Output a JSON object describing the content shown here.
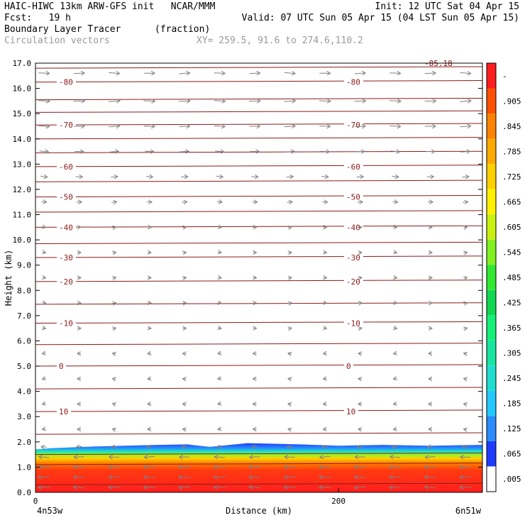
{
  "header": {
    "line1_left": "HAIC-HIWC 13km ARW-GFS init   NCAR/MMM",
    "line1_right": "Init: 12 UTC Sat 04 Apr 15",
    "line2_left": "Fcst:   19 h",
    "line2_right": "Valid: 07 UTC Sun 05 Apr 15 (04 LST Sun 05 Apr 15)",
    "field_name": "Boundary Layer Tracer",
    "field_units": "(fraction)",
    "overlay_name": "Circulation vectors",
    "xy_range": "XY= 259.5, 91.6 to 274.6,110.2"
  },
  "chart_data": {
    "type": "heatmap",
    "xlabel": "Distance (km)",
    "ylabel": "Height (km)",
    "xlim": [
      0,
      295
    ],
    "ylim": [
      0,
      17
    ],
    "x_ticks": [
      0,
      200
    ],
    "x_tick_labels": [
      "0",
      "200"
    ],
    "x_endpoint_labels": [
      "4n53w",
      "6n51w"
    ],
    "y_ticks": [
      0,
      1,
      2,
      3,
      4,
      5,
      6,
      7,
      8,
      9,
      10,
      11,
      12,
      13,
      14,
      15,
      16,
      17
    ],
    "y_tick_labels": [
      "0.0",
      "1.0",
      "2.0",
      "3.0",
      "4.0",
      "5.0",
      "6.0",
      "7.0",
      "8.0",
      "9.0",
      "10.0",
      "11.0",
      "12.0",
      "13.0",
      "14.0",
      "15.0",
      "16.0",
      "17.0"
    ],
    "colorbar": {
      "labels": [
        ".005",
        ".065",
        ".125",
        ".185",
        ".245",
        ".305",
        ".365",
        ".425",
        ".485",
        ".545",
        ".605",
        ".665",
        ".725",
        ".785",
        ".845",
        ".905",
        "-"
      ],
      "colors": [
        "#ffffff",
        "#1e3cff",
        "#2a8cff",
        "#22c8ff",
        "#1eddd0",
        "#18e6a0",
        "#14f078",
        "#10d850",
        "#30e830",
        "#80f020",
        "#c8f010",
        "#fff000",
        "#ffd000",
        "#ffaa00",
        "#ff8200",
        "#ff5000",
        "#ff1e1e"
      ]
    },
    "pbl_top_km": [
      [
        0,
        1.7
      ],
      [
        10,
        1.75
      ],
      [
        40,
        1.82
      ],
      [
        80,
        1.88
      ],
      [
        100,
        1.9
      ],
      [
        115,
        1.8
      ],
      [
        140,
        1.95
      ],
      [
        175,
        1.9
      ],
      [
        200,
        1.85
      ],
      [
        230,
        1.88
      ],
      [
        260,
        1.85
      ],
      [
        295,
        1.88
      ]
    ],
    "isotherms_degC": [
      {
        "label": "-80",
        "height_km": 16.25
      },
      {
        "label": "-70",
        "height_km": 14.55
      },
      {
        "label": "-60",
        "height_km": 12.9
      },
      {
        "label": "-50",
        "height_km": 11.7
      },
      {
        "label": "-40",
        "height_km": 10.5
      },
      {
        "label": "-30",
        "height_km": 9.3
      },
      {
        "label": "-20",
        "height_km": 8.35
      },
      {
        "label": "-10",
        "height_km": 6.7
      },
      {
        "label": "0",
        "height_km": 5.0
      },
      {
        "label": "10",
        "height_km": 3.2
      }
    ],
    "top_partial_label": "-85.18",
    "contour_heights_km": [
      0.3,
      1.1,
      1.5,
      2.3,
      3.2,
      4.1,
      5.0,
      5.85,
      6.7,
      7.45,
      8.35,
      9.3,
      9.85,
      10.5,
      11.1,
      11.7,
      12.3,
      12.9,
      13.45,
      14.0,
      14.55,
      15.05,
      15.55,
      16.25,
      16.8
    ],
    "wind_profile": [
      {
        "height_km": 0.2,
        "u": -1.0
      },
      {
        "height_km": 0.6,
        "u": -1.0
      },
      {
        "height_km": 1.0,
        "u": -1.0
      },
      {
        "height_km": 1.4,
        "u": -0.9
      },
      {
        "height_km": 1.8,
        "u": -0.5
      },
      {
        "height_km": 2.5,
        "u": -0.25
      },
      {
        "height_km": 3.5,
        "u": -0.2
      },
      {
        "height_km": 4.5,
        "u": -0.2
      },
      {
        "height_km": 5.5,
        "u": -0.15
      },
      {
        "height_km": 6.5,
        "u": 0.1
      },
      {
        "height_km": 7.5,
        "u": 0.15
      },
      {
        "height_km": 8.5,
        "u": 0.2
      },
      {
        "height_km": 9.5,
        "u": 0.25
      },
      {
        "height_km": 10.5,
        "u": 0.3
      },
      {
        "height_km": 11.5,
        "u": 0.45
      },
      {
        "height_km": 12.5,
        "u": 0.6
      },
      {
        "height_km": 13.5,
        "u": 0.8
      },
      {
        "height_km": 14.5,
        "u": 0.95
      },
      {
        "height_km": 15.5,
        "u": 1.0
      },
      {
        "height_km": 16.6,
        "u": 0.95
      }
    ]
  }
}
